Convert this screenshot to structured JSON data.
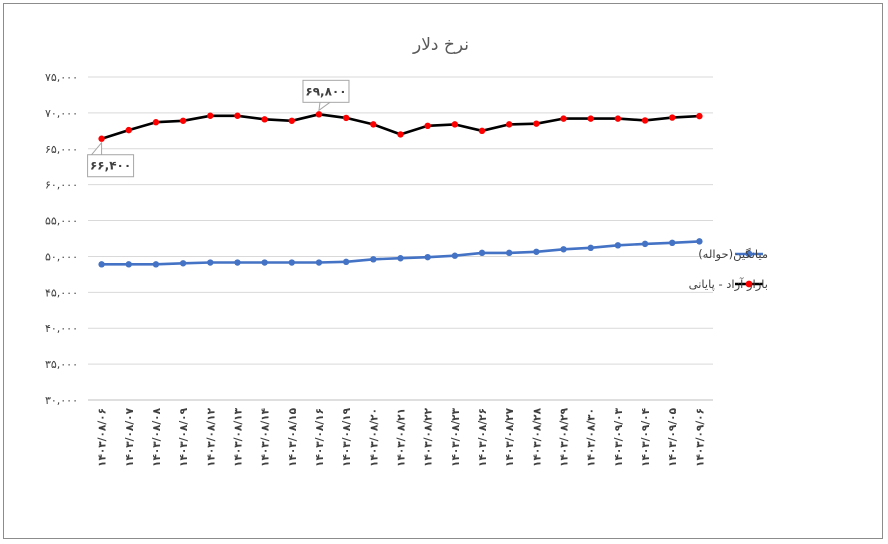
{
  "chart_data": {
    "type": "line",
    "title": "نرخ دلار",
    "xlabel": "",
    "ylabel": "",
    "ylim": [
      30000,
      75000
    ],
    "grid": true,
    "legend_position": "right",
    "y_ticks": [
      30000,
      35000,
      40000,
      45000,
      50000,
      55000,
      60000,
      65000,
      70000,
      75000
    ],
    "y_tick_labels": [
      "۳۰,۰۰۰",
      "۳۵,۰۰۰",
      "۴۰,۰۰۰",
      "۴۵,۰۰۰",
      "۵۰,۰۰۰",
      "۵۵,۰۰۰",
      "۶۰,۰۰۰",
      "۶۵,۰۰۰",
      "۷۰,۰۰۰",
      "۷۵,۰۰۰"
    ],
    "categories": [
      "۱۴۰۳/۰۸/۰۶",
      "۱۴۰۳/۰۸/۰۷",
      "۱۴۰۳/۰۸/۰۸",
      "۱۴۰۳/۰۸/۰۹",
      "۱۴۰۳/۰۸/۱۲",
      "۱۴۰۳/۰۸/۱۳",
      "۱۴۰۳/۰۸/۱۴",
      "۱۴۰۳/۰۸/۱۵",
      "۱۴۰۳/۰۸/۱۶",
      "۱۴۰۳/۰۸/۱۹",
      "۱۴۰۳/۰۸/۲۰",
      "۱۴۰۳/۰۸/۲۱",
      "۱۴۰۳/۰۸/۲۲",
      "۱۴۰۳/۰۸/۲۳",
      "۱۴۰۳/۰۸/۲۶",
      "۱۴۰۳/۰۸/۲۷",
      "۱۴۰۳/۰۸/۲۸",
      "۱۴۰۳/۰۸/۲۹",
      "۱۴۰۳/۰۸/۳۰",
      "۱۴۰۳/۰۹/۰۳",
      "۱۴۰۳/۰۹/۰۴",
      "۱۴۰۳/۰۹/۰۵",
      "۱۴۰۳/۰۹/۰۶"
    ],
    "series": [
      {
        "name": "میانگین(حواله)",
        "color": "#4472c4",
        "marker_color": "#4472c4",
        "values": [
          48900,
          48900,
          48900,
          49050,
          49150,
          49150,
          49150,
          49150,
          49150,
          49250,
          49600,
          49750,
          49900,
          50100,
          50500,
          50500,
          50650,
          51000,
          51200,
          51550,
          51750,
          51900,
          52100
        ]
      },
      {
        "name": "بازار آزاد - پایانی",
        "color": "#000000",
        "marker_color": "#ff0000",
        "values": [
          66400,
          67600,
          68700,
          68900,
          69600,
          69600,
          69100,
          68900,
          69800,
          69300,
          68400,
          67000,
          68200,
          68400,
          67500,
          68400,
          68500,
          69200,
          69200,
          69200,
          68950,
          69350,
          69550
        ]
      }
    ],
    "annotations": [
      {
        "series": 1,
        "index": 0,
        "text": "۶۶,۴۰۰"
      },
      {
        "series": 1,
        "index": 8,
        "text": "۶۹,۸۰۰"
      }
    ]
  }
}
